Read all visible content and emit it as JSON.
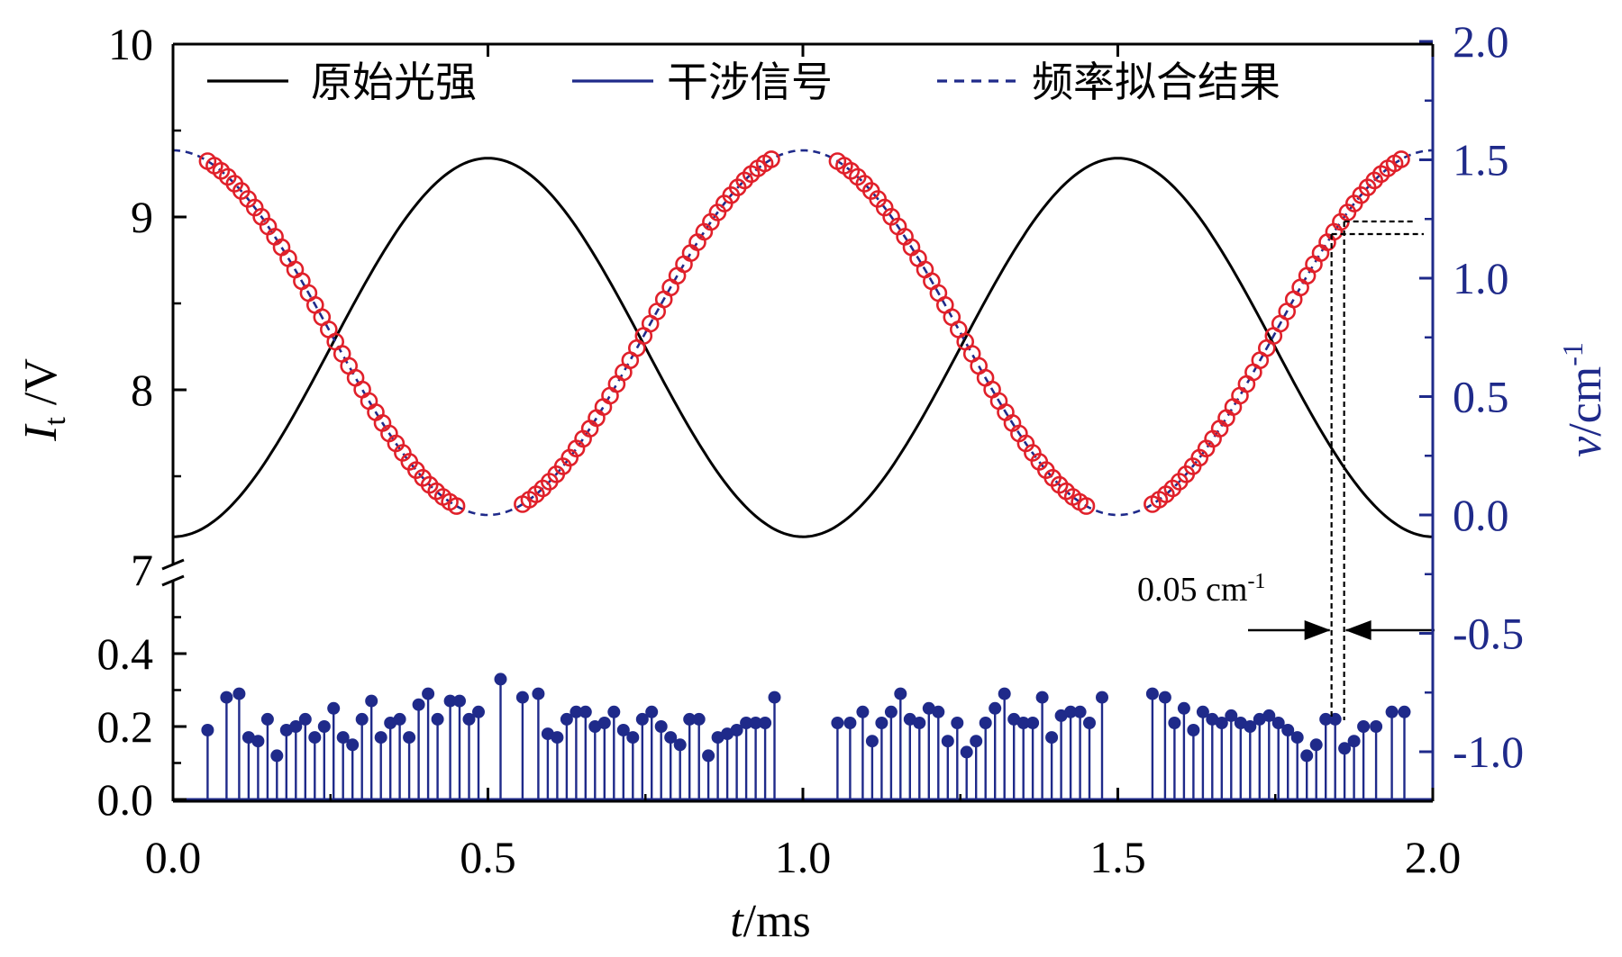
{
  "chart_data": {
    "type": "line",
    "x_axis": {
      "label_italic": "t",
      "label_rest": "/ms",
      "range": [
        0.0,
        2.0
      ],
      "ticks": [
        0.0,
        0.5,
        1.0,
        1.5,
        2.0
      ],
      "tick_labels": [
        "0.0",
        "0.5",
        "1.0",
        "1.5",
        "2.0"
      ]
    },
    "y_left_upper": {
      "label_italic": "I",
      "label_sub": "t",
      "label_rest": " /V",
      "range": [
        7,
        10
      ],
      "ticks": [
        7,
        8,
        9,
        10
      ],
      "tick_labels": [
        "7",
        "8",
        "9",
        "10"
      ]
    },
    "y_left_lower": {
      "range": [
        0.0,
        0.55
      ],
      "ticks": [
        0.0,
        0.2,
        0.4
      ],
      "tick_labels": [
        "0.0",
        "0.2",
        "0.4"
      ]
    },
    "y_right": {
      "label_italic": "v",
      "label_rest": "/cm",
      "label_sup": "-1",
      "range": [
        -1.2,
        2.0
      ],
      "ticks": [
        -1.0,
        -0.5,
        0.0,
        0.5,
        1.0,
        1.5,
        2.0
      ],
      "tick_labels": [
        "-1.0",
        "-0.5",
        "0.0",
        "0.5",
        "1.0",
        "1.5",
        "2.0"
      ]
    },
    "legend": {
      "placement": "top",
      "entries": [
        {
          "label": "原始光强",
          "color": "#000000",
          "style": "solid"
        },
        {
          "label": "干涉信号",
          "color": "#1f2a8a",
          "style": "solid"
        },
        {
          "label": "频率拟合结果",
          "color": "#1f2a8a",
          "style": "dashed"
        }
      ]
    },
    "annotation": {
      "text": "0.05 cm",
      "sup": "-1",
      "x": 1.845,
      "width_ms": 0.017
    },
    "series": [
      {
        "name": "原始光强",
        "color": "#000000",
        "axis": "left_upper",
        "x": [
          0.0,
          0.05,
          0.1,
          0.15,
          0.2,
          0.25,
          0.3,
          0.35,
          0.4,
          0.45,
          0.5,
          0.55,
          0.6,
          0.65,
          0.7,
          0.75,
          0.8,
          0.85,
          0.9,
          0.95,
          1.0,
          1.05,
          1.1,
          1.15,
          1.2,
          1.25,
          1.3,
          1.35,
          1.4,
          1.45,
          1.5,
          1.55,
          1.6,
          1.65,
          1.7,
          1.75,
          1.8,
          1.85,
          1.9,
          1.95,
          2.0
        ],
        "y": [
          7.15,
          7.2,
          7.36,
          7.6,
          7.93,
          8.24,
          8.56,
          8.88,
          9.12,
          9.29,
          9.34,
          9.29,
          9.12,
          8.88,
          8.56,
          8.24,
          7.93,
          7.6,
          7.36,
          7.2,
          7.15,
          7.2,
          7.36,
          7.6,
          7.93,
          8.24,
          8.56,
          8.88,
          9.12,
          9.29,
          9.34,
          9.29,
          9.12,
          8.88,
          8.56,
          8.24,
          7.93,
          7.6,
          7.36,
          7.2,
          7.15
        ]
      },
      {
        "name": "频率拟合结果",
        "color": "#1f2a8a",
        "axis": "right",
        "x": [
          0.0,
          0.05,
          0.1,
          0.15,
          0.2,
          0.25,
          0.3,
          0.35,
          0.4,
          0.45,
          0.5,
          0.55,
          0.6,
          0.65,
          0.7,
          0.75,
          0.8,
          0.85,
          0.9,
          0.95,
          1.0,
          1.05,
          1.1,
          1.15,
          1.2,
          1.25,
          1.3,
          1.35,
          1.4,
          1.45,
          1.5,
          1.55,
          1.6,
          1.65,
          1.7,
          1.75,
          1.8,
          1.85,
          1.9,
          1.95,
          2.0
        ],
        "y": [
          1.54,
          1.5,
          1.39,
          1.21,
          1.0,
          0.77,
          0.54,
          0.33,
          0.15,
          0.04,
          0.0,
          0.04,
          0.15,
          0.33,
          0.54,
          0.77,
          1.0,
          1.21,
          1.39,
          1.5,
          1.54,
          1.5,
          1.39,
          1.21,
          1.0,
          0.77,
          0.54,
          0.33,
          0.15,
          0.04,
          0.0,
          0.04,
          0.15,
          0.33,
          0.54,
          0.77,
          1.0,
          1.21,
          1.39,
          1.5,
          1.54
        ]
      },
      {
        "name": "频率拟合点",
        "color": "#e0202a",
        "axis": "right",
        "marker": "open-circle",
        "segments": [
          [
            0.055,
            0.45
          ],
          [
            0.555,
            0.95
          ],
          [
            1.055,
            1.45
          ],
          [
            1.555,
            1.95
          ]
        ],
        "count_per_segment": 38
      },
      {
        "name": "干涉信号",
        "color": "#1f2a8a",
        "axis": "left_lower",
        "marker": "filled-circle-stem",
        "points": [
          [
            0.055,
            0.19
          ],
          [
            0.085,
            0.28
          ],
          [
            0.105,
            0.29
          ],
          [
            0.12,
            0.17
          ],
          [
            0.135,
            0.16
          ],
          [
            0.15,
            0.22
          ],
          [
            0.165,
            0.12
          ],
          [
            0.18,
            0.19
          ],
          [
            0.195,
            0.2
          ],
          [
            0.21,
            0.22
          ],
          [
            0.225,
            0.17
          ],
          [
            0.24,
            0.2
          ],
          [
            0.255,
            0.25
          ],
          [
            0.27,
            0.17
          ],
          [
            0.285,
            0.15
          ],
          [
            0.3,
            0.22
          ],
          [
            0.315,
            0.27
          ],
          [
            0.33,
            0.17
          ],
          [
            0.345,
            0.21
          ],
          [
            0.36,
            0.22
          ],
          [
            0.375,
            0.17
          ],
          [
            0.39,
            0.26
          ],
          [
            0.405,
            0.29
          ],
          [
            0.42,
            0.22
          ],
          [
            0.44,
            0.27
          ],
          [
            0.455,
            0.27
          ],
          [
            0.47,
            0.22
          ],
          [
            0.485,
            0.24
          ],
          [
            0.52,
            0.33
          ],
          [
            0.555,
            0.28
          ],
          [
            0.58,
            0.29
          ],
          [
            0.595,
            0.18
          ],
          [
            0.61,
            0.17
          ],
          [
            0.625,
            0.22
          ],
          [
            0.64,
            0.24
          ],
          [
            0.655,
            0.24
          ],
          [
            0.67,
            0.2
          ],
          [
            0.685,
            0.21
          ],
          [
            0.7,
            0.24
          ],
          [
            0.715,
            0.19
          ],
          [
            0.73,
            0.17
          ],
          [
            0.745,
            0.22
          ],
          [
            0.76,
            0.24
          ],
          [
            0.775,
            0.2
          ],
          [
            0.79,
            0.17
          ],
          [
            0.805,
            0.15
          ],
          [
            0.82,
            0.22
          ],
          [
            0.835,
            0.22
          ],
          [
            0.85,
            0.12
          ],
          [
            0.865,
            0.17
          ],
          [
            0.88,
            0.18
          ],
          [
            0.895,
            0.19
          ],
          [
            0.91,
            0.21
          ],
          [
            0.925,
            0.21
          ],
          [
            0.94,
            0.21
          ],
          [
            0.955,
            0.28
          ],
          [
            1.055,
            0.21
          ],
          [
            1.075,
            0.21
          ],
          [
            1.095,
            0.24
          ],
          [
            1.11,
            0.16
          ],
          [
            1.125,
            0.21
          ],
          [
            1.14,
            0.24
          ],
          [
            1.155,
            0.29
          ],
          [
            1.17,
            0.22
          ],
          [
            1.185,
            0.21
          ],
          [
            1.2,
            0.25
          ],
          [
            1.215,
            0.24
          ],
          [
            1.23,
            0.16
          ],
          [
            1.245,
            0.21
          ],
          [
            1.26,
            0.13
          ],
          [
            1.275,
            0.16
          ],
          [
            1.29,
            0.21
          ],
          [
            1.305,
            0.25
          ],
          [
            1.32,
            0.29
          ],
          [
            1.335,
            0.22
          ],
          [
            1.35,
            0.21
          ],
          [
            1.365,
            0.21
          ],
          [
            1.38,
            0.28
          ],
          [
            1.395,
            0.17
          ],
          [
            1.41,
            0.23
          ],
          [
            1.425,
            0.24
          ],
          [
            1.44,
            0.24
          ],
          [
            1.455,
            0.21
          ],
          [
            1.475,
            0.28
          ],
          [
            1.555,
            0.29
          ],
          [
            1.575,
            0.28
          ],
          [
            1.59,
            0.21
          ],
          [
            1.605,
            0.25
          ],
          [
            1.62,
            0.19
          ],
          [
            1.635,
            0.24
          ],
          [
            1.65,
            0.22
          ],
          [
            1.665,
            0.21
          ],
          [
            1.68,
            0.23
          ],
          [
            1.695,
            0.21
          ],
          [
            1.71,
            0.2
          ],
          [
            1.725,
            0.22
          ],
          [
            1.74,
            0.23
          ],
          [
            1.755,
            0.21
          ],
          [
            1.77,
            0.19
          ],
          [
            1.785,
            0.17
          ],
          [
            1.8,
            0.12
          ],
          [
            1.815,
            0.15
          ],
          [
            1.83,
            0.22
          ],
          [
            1.845,
            0.22
          ],
          [
            1.86,
            0.14
          ],
          [
            1.875,
            0.16
          ],
          [
            1.89,
            0.2
          ],
          [
            1.91,
            0.2
          ],
          [
            1.935,
            0.24
          ],
          [
            1.955,
            0.24
          ]
        ]
      }
    ]
  }
}
